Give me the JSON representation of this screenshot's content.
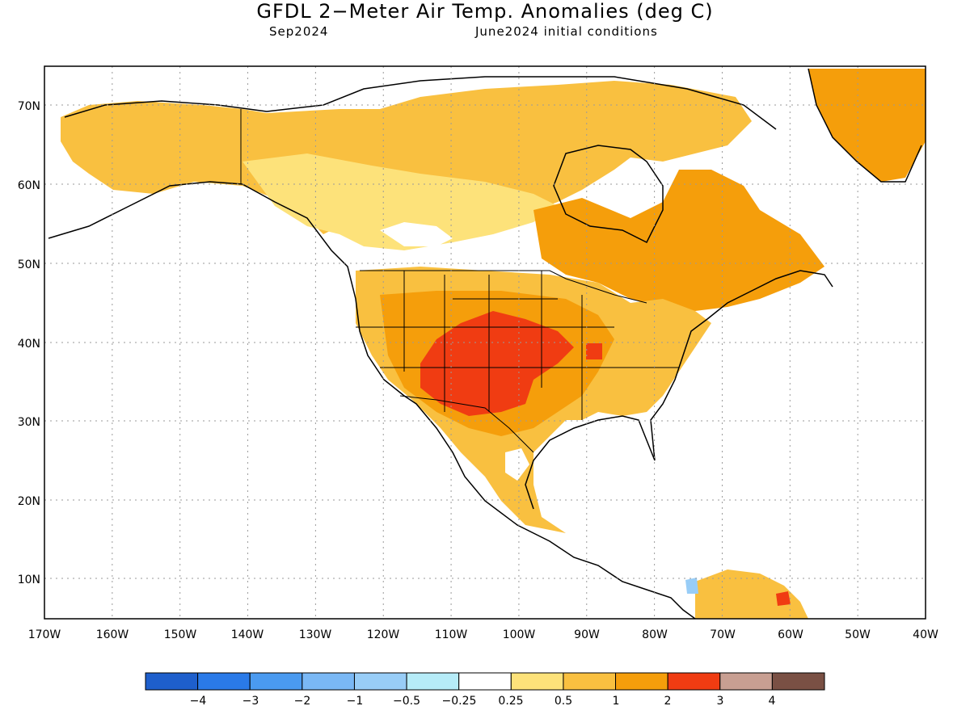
{
  "title": "GFDL 2−Meter Air Temp. Anomalies (deg C)",
  "subtitle_left": "Sep2024",
  "subtitle_right": "June2024 initial conditions",
  "axes": {
    "lat_labels": [
      "70N",
      "60N",
      "50N",
      "40N",
      "30N",
      "20N",
      "10N"
    ],
    "lon_labels": [
      "170W",
      "160W",
      "150W",
      "140W",
      "130W",
      "120W",
      "110W",
      "100W",
      "90W",
      "80W",
      "70W",
      "60W",
      "50W",
      "40W"
    ]
  },
  "colorbar": {
    "colors": [
      "#1e5fcc",
      "#2a7ae8",
      "#4a9af0",
      "#7ab8f5",
      "#98cdf7",
      "#b6ecf8",
      "#ffffff",
      "#fde27a",
      "#f9c040",
      "#f59e0b",
      "#f03c12",
      "#c89f92",
      "#7a5044"
    ],
    "labels": [
      "−4",
      "−3",
      "−2",
      "−1",
      "−0.5",
      "−0.25",
      "0.25",
      "0.5",
      "1",
      "2",
      "3",
      "4"
    ]
  },
  "palette": {
    "land_light": "#fde27a",
    "land_mid": "#f9c040",
    "land_orange": "#f59e0b",
    "hot": "#f03c12",
    "cool": "#98cdf7"
  }
}
